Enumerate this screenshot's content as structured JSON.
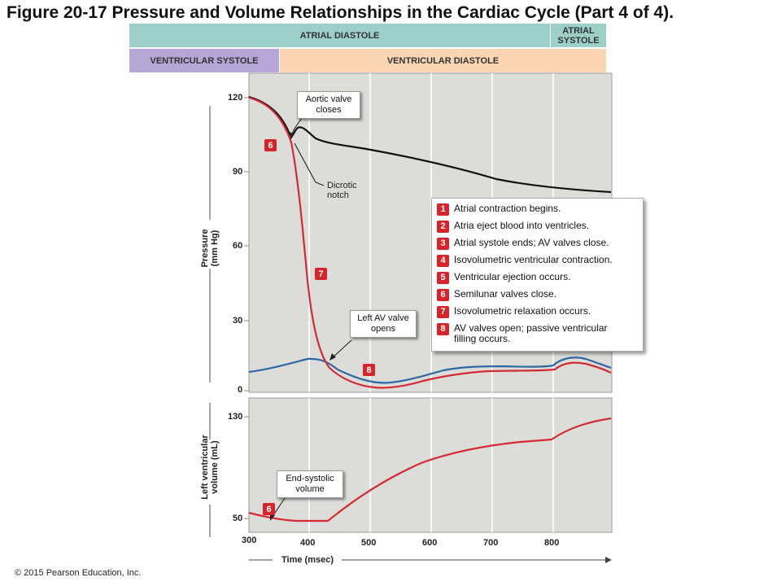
{
  "title": "Figure 20-17 Pressure and Volume Relationships in the Cardiac Cycle (Part 4 of 4).",
  "bands": {
    "atrial_diastole": "ATRIAL DIASTOLE",
    "atrial_systole": "ATRIAL SYSTOLE",
    "ventricular_systole": "VENTRICULAR SYSTOLE",
    "ventricular_diastole": "VENTRICULAR DIASTOLE"
  },
  "colors": {
    "band_atrial": "#9ccfc8",
    "band_vent_systole": "#b5a6d6",
    "band_vent_diastole": "#f9d5b3",
    "plot_bg": "#dcdcd8",
    "ventricular_curve": "#d42a33",
    "atrial_curve": "#2d6aa3",
    "aortic_curve": "#111111"
  },
  "pressure_axis": {
    "title": "Pressure (mm Hg)",
    "ticks": [
      "120",
      "90",
      "60",
      "30",
      "0"
    ]
  },
  "volume_axis": {
    "title": "Left ventricular volume (mL)",
    "ticks": [
      "130",
      "50"
    ]
  },
  "time_axis": {
    "title": "Time (msec)",
    "ticks": [
      "300",
      "400",
      "500",
      "600",
      "700",
      "800"
    ]
  },
  "callouts": {
    "aortic_valve": "Aortic valve closes",
    "dicrotic": "Dicrotic notch",
    "left_av": "Left AV valve opens",
    "end_systolic": "End-systolic volume"
  },
  "markers": {
    "m6_top": "6",
    "m7": "7",
    "m8": "8",
    "m6_bottom": "6"
  },
  "legend": [
    {
      "num": "1",
      "text": "Atrial contraction begins."
    },
    {
      "num": "2",
      "text": "Atria eject blood into ventricles."
    },
    {
      "num": "3",
      "text": "Atrial systole ends; AV valves close."
    },
    {
      "num": "4",
      "text": "Isovolumetric ventricular contraction."
    },
    {
      "num": "5",
      "text": "Ventricular ejection occurs."
    },
    {
      "num": "6",
      "text": "Semilunar valves close."
    },
    {
      "num": "7",
      "text": "Isovolumetric relaxation occurs."
    },
    {
      "num": "8",
      "text": "AV valves open; passive ventricular filling occurs."
    }
  ],
  "copyright": "© 2015 Pearson Education, Inc."
}
